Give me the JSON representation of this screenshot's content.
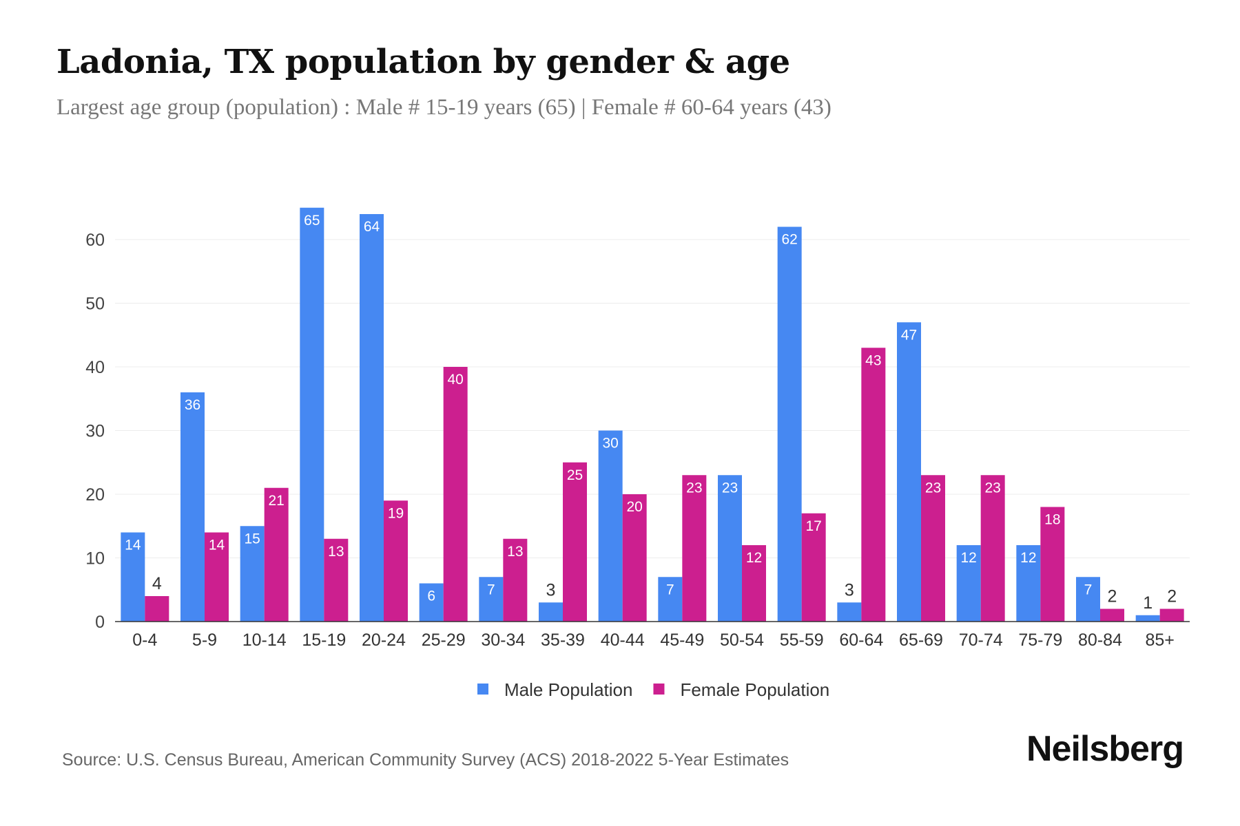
{
  "title": "Ladonia, TX population by gender & age",
  "subtitle": "Largest age group (population) : Male # 15-19 years (65) | Female # 60-64 years (43)",
  "source": "Source: U.S. Census Bureau, American Community Survey (ACS) 2018-2022 5-Year Estimates",
  "logo": "Neilsberg",
  "chart_data": {
    "type": "bar",
    "categories": [
      "0-4",
      "5-9",
      "10-14",
      "15-19",
      "20-24",
      "25-29",
      "30-34",
      "35-39",
      "40-44",
      "45-49",
      "50-54",
      "55-59",
      "60-64",
      "65-69",
      "70-74",
      "75-79",
      "80-84",
      "85+"
    ],
    "series": [
      {
        "name": "Male Population",
        "color": "#4688f2",
        "values": [
          14,
          36,
          15,
          65,
          64,
          6,
          7,
          3,
          30,
          7,
          23,
          62,
          3,
          47,
          12,
          12,
          7,
          1
        ]
      },
      {
        "name": "Female Population",
        "color": "#cc1f8f",
        "values": [
          4,
          14,
          21,
          13,
          19,
          40,
          13,
          25,
          20,
          23,
          12,
          17,
          43,
          23,
          23,
          18,
          2,
          2
        ]
      }
    ],
    "yticks": [
      0,
      10,
      20,
      30,
      40,
      50,
      60
    ],
    "ylim": [
      0,
      66
    ],
    "grid": true,
    "legend": "bottom-center",
    "data_labels": true
  }
}
